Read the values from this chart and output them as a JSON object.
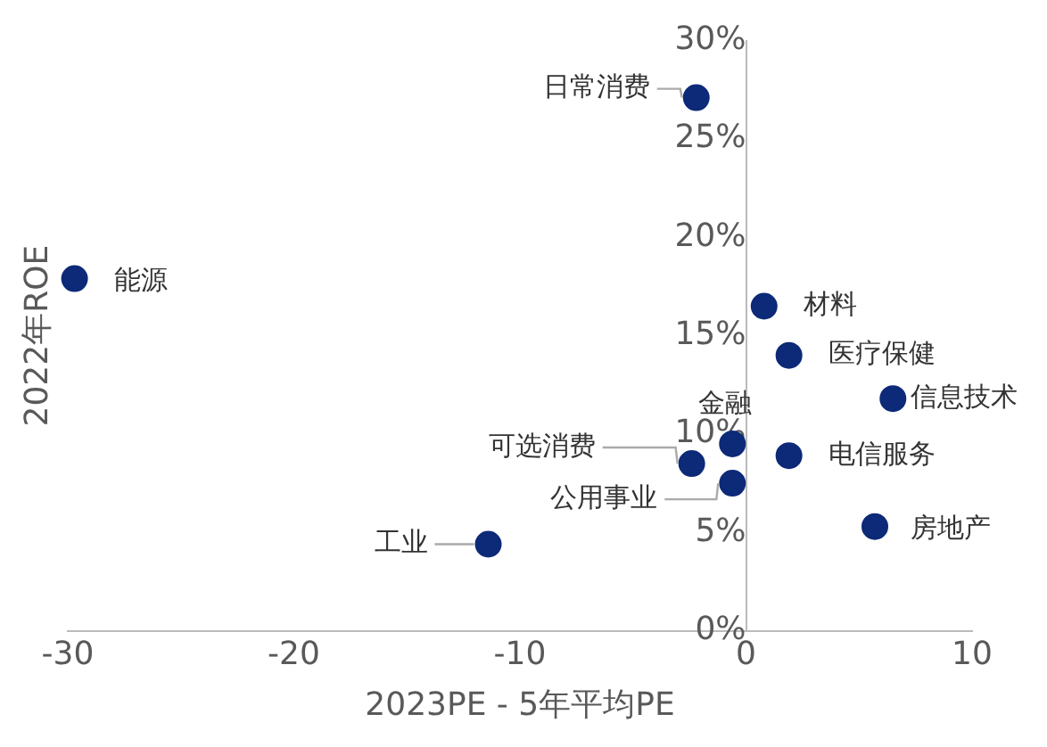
{
  "chart_data": {
    "type": "scatter",
    "xlabel": "2023PE - 5年平均PE",
    "ylabel": "2022年ROE",
    "x": [
      -2.2,
      -29.7,
      0.8,
      1.9,
      6.5,
      -0.6,
      1.9,
      -2.4,
      -0.6,
      -11.4,
      5.7
    ],
    "series": [
      {
        "color": "#0d2a78",
        "values": [
          27.1,
          17.9,
          16.5,
          14.0,
          11.8,
          9.5,
          8.9,
          8.5,
          7.5,
          4.4,
          5.3
        ]
      }
    ],
    "annotations": [
      {
        "text": "日常消费",
        "x": -2.2,
        "y": 27.1
      },
      {
        "text": "能源",
        "x": -29.7,
        "y": 17.9
      },
      {
        "text": "材料",
        "x": 0.8,
        "y": 16.5
      },
      {
        "text": "医疗保健",
        "x": 1.9,
        "y": 14.0
      },
      {
        "text": "信息技术",
        "x": 6.5,
        "y": 11.8
      },
      {
        "text": "金融",
        "x": -0.6,
        "y": 9.5
      },
      {
        "text": "电信服务",
        "x": 1.9,
        "y": 8.9
      },
      {
        "text": "可选消费",
        "x": -2.4,
        "y": 8.5
      },
      {
        "text": "公用事业",
        "x": -0.6,
        "y": 7.5
      },
      {
        "text": "工业",
        "x": -11.4,
        "y": 4.4
      },
      {
        "text": "房地产",
        "x": 5.7,
        "y": 5.3
      }
    ],
    "xlim": [
      -30,
      10
    ],
    "xticks": [
      -30,
      -20,
      -10,
      0,
      10
    ],
    "ylim": [
      0,
      30
    ],
    "yticks": [
      {
        "value": 0,
        "label": "0%"
      },
      {
        "value": 5,
        "label": "5%"
      },
      {
        "value": 10,
        "label": "10%"
      },
      {
        "value": 15,
        "label": "15%"
      },
      {
        "value": 20,
        "label": "20%"
      },
      {
        "value": 25,
        "label": "25%"
      },
      {
        "value": 30,
        "label": "30%"
      }
    ],
    "marker": "circle",
    "grid": false,
    "legend": false
  }
}
